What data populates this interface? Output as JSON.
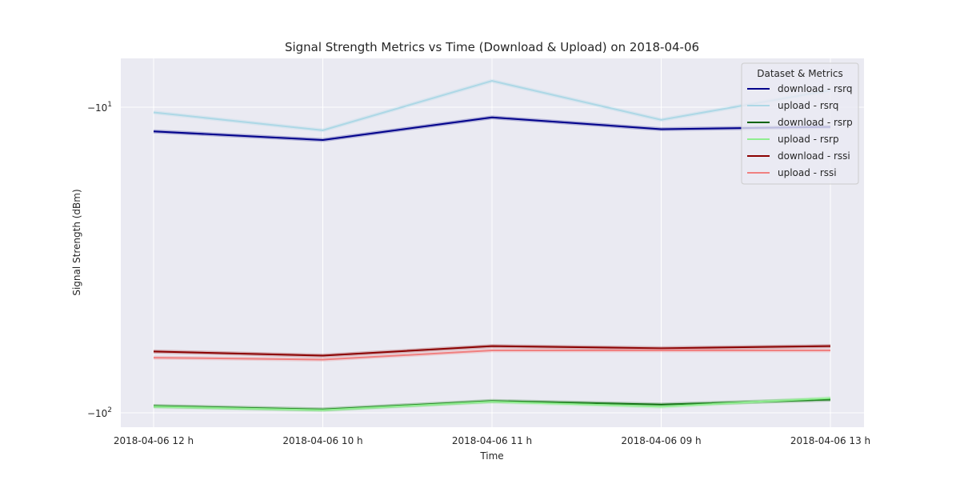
{
  "chart_data": {
    "type": "line",
    "title": "Signal Strength Metrics vs Time (Download & Upload) on 2018-04-06",
    "xlabel": "Time",
    "ylabel": "Signal Strength (dBm)",
    "yscale": "symlog (log of magnitude, inverted so more negative is lower)",
    "categories": [
      "2018-04-06 12 h",
      "2018-04-06 10 h",
      "2018-04-06 11 h",
      "2018-04-06 09 h",
      "2018-04-06 13 h"
    ],
    "yticks": [
      {
        "value": -10,
        "label_base": "−10",
        "label_exp": "1"
      },
      {
        "value": -100,
        "label_base": "−10",
        "label_exp": "2"
      }
    ],
    "ylim": [
      -105,
      -8.5
    ],
    "grid": true,
    "legend": {
      "title": "Dataset & Metrics",
      "placement": "top-right"
    },
    "series": [
      {
        "name": "download - rsrq",
        "color": "#00008b",
        "values": [
          -12.0,
          -12.8,
          -10.8,
          -11.8,
          -11.6
        ]
      },
      {
        "name": "upload - rsrq",
        "color": "#add8e6",
        "values": [
          -10.4,
          -11.9,
          -8.2,
          -11.0,
          -8.8
        ]
      },
      {
        "name": "download - rsrp",
        "color": "#006400",
        "values": [
          -95.0,
          -97.5,
          -91.5,
          -94.0,
          -90.5
        ]
      },
      {
        "name": "upload - rsrp",
        "color": "#90ee90",
        "values": [
          -95.5,
          -98.0,
          -92.0,
          -95.5,
          -89.5
        ]
      },
      {
        "name": "download - rssi",
        "color": "#8b0000",
        "values": [
          -63.0,
          -65.0,
          -60.5,
          -61.5,
          -60.5
        ]
      },
      {
        "name": "upload - rssi",
        "color": "#f08080",
        "values": [
          -66.0,
          -67.0,
          -62.5,
          -62.5,
          -62.5
        ]
      }
    ]
  }
}
